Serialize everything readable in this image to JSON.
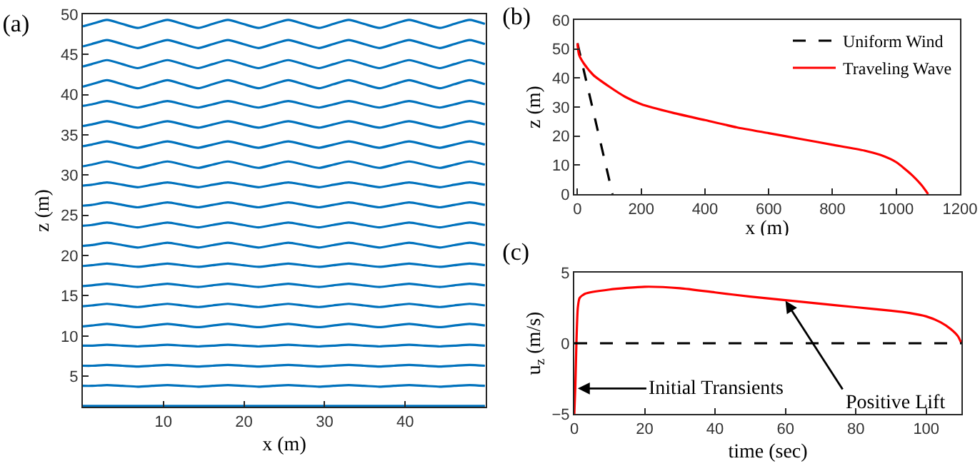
{
  "chart_data": [
    {
      "type": "line",
      "title": "(a)",
      "xlabel": "x (m)",
      "ylabel": "z (m)",
      "xlim": [
        0,
        50
      ],
      "ylim": [
        1.2,
        50
      ],
      "xticks": [
        10,
        20,
        30,
        40
      ],
      "yticks": [
        5,
        10,
        15,
        20,
        25,
        30,
        35,
        40,
        45,
        50
      ],
      "grid": false,
      "legend": false,
      "x": [
        0,
        1.1,
        3,
        4.9,
        6.8,
        8.6,
        10.5,
        12.4,
        14.3,
        16.1,
        18,
        19.9,
        21.8,
        23.6,
        25.5,
        27.4,
        29.3,
        31.1,
        33,
        34.9,
        36.8,
        38.6,
        40.5,
        42.4,
        44.3,
        46.1,
        48,
        49.9
      ],
      "series": [
        {
          "color": "#0072bd",
          "values": [
            1.3,
            1.3,
            1.3,
            1.3,
            1.3,
            1.3,
            1.3,
            1.3,
            1.3,
            1.3,
            1.3,
            1.3,
            1.3,
            1.3,
            1.3,
            1.3,
            1.3,
            1.3,
            1.3,
            1.3,
            1.3,
            1.3,
            1.3,
            1.3,
            1.3,
            1.3,
            1.3,
            1.3
          ]
        },
        {
          "color": "#0072bd",
          "values": [
            3.8,
            3.8,
            3.9,
            3.8,
            3.7,
            3.8,
            3.9,
            3.8,
            3.7,
            3.8,
            3.9,
            3.8,
            3.7,
            3.8,
            3.9,
            3.8,
            3.7,
            3.8,
            3.9,
            3.8,
            3.7,
            3.8,
            3.9,
            3.8,
            3.7,
            3.8,
            3.9,
            3.8
          ]
        },
        {
          "color": "#0072bd",
          "values": [
            6.3,
            6.3,
            6.4,
            6.3,
            6.2,
            6.3,
            6.4,
            6.3,
            6.2,
            6.3,
            6.4,
            6.3,
            6.2,
            6.3,
            6.4,
            6.3,
            6.2,
            6.3,
            6.4,
            6.3,
            6.2,
            6.3,
            6.4,
            6.3,
            6.2,
            6.3,
            6.4,
            6.3
          ]
        },
        {
          "color": "#0072bd",
          "values": [
            8.8,
            8.8,
            8.9,
            8.8,
            8.7,
            8.8,
            8.9,
            8.8,
            8.7,
            8.8,
            8.9,
            8.8,
            8.7,
            8.8,
            8.9,
            8.8,
            8.7,
            8.8,
            8.9,
            8.8,
            8.7,
            8.8,
            8.9,
            8.8,
            8.7,
            8.8,
            8.9,
            8.8
          ]
        },
        {
          "color": "#0072bd",
          "values": [
            11.2,
            11.3,
            11.5,
            11.3,
            11.1,
            11.3,
            11.5,
            11.3,
            11.1,
            11.3,
            11.5,
            11.3,
            11.1,
            11.3,
            11.5,
            11.3,
            11.1,
            11.3,
            11.5,
            11.3,
            11.1,
            11.3,
            11.5,
            11.3,
            11.1,
            11.3,
            11.5,
            11.3
          ]
        },
        {
          "color": "#0072bd",
          "values": [
            13.7,
            13.8,
            14.0,
            13.8,
            13.6,
            13.8,
            14.0,
            13.8,
            13.6,
            13.8,
            14.0,
            13.8,
            13.6,
            13.8,
            14.0,
            13.8,
            13.6,
            13.8,
            14.0,
            13.8,
            13.6,
            13.8,
            14.0,
            13.8,
            13.6,
            13.8,
            14.0,
            13.8
          ]
        },
        {
          "color": "#0072bd",
          "values": [
            16.2,
            16.3,
            16.5,
            16.3,
            16.1,
            16.3,
            16.5,
            16.3,
            16.1,
            16.3,
            16.5,
            16.3,
            16.1,
            16.3,
            16.5,
            16.3,
            16.1,
            16.3,
            16.5,
            16.3,
            16.1,
            16.3,
            16.5,
            16.3,
            16.1,
            16.3,
            16.5,
            16.3
          ]
        },
        {
          "color": "#0072bd",
          "values": [
            18.7,
            18.8,
            19.0,
            18.8,
            18.6,
            18.8,
            19.0,
            18.8,
            18.6,
            18.8,
            19.0,
            18.8,
            18.6,
            18.8,
            19.0,
            18.8,
            18.6,
            18.8,
            19.0,
            18.8,
            18.6,
            18.8,
            19.0,
            18.8,
            18.6,
            18.8,
            19.0,
            18.8
          ]
        },
        {
          "color": "#0072bd",
          "values": [
            21.2,
            21.3,
            21.6,
            21.3,
            21.0,
            21.3,
            21.6,
            21.3,
            21.0,
            21.3,
            21.6,
            21.3,
            21.0,
            21.3,
            21.6,
            21.3,
            21.0,
            21.3,
            21.6,
            21.3,
            21.0,
            21.3,
            21.6,
            21.3,
            21.0,
            21.3,
            21.6,
            21.3
          ]
        },
        {
          "color": "#0072bd",
          "values": [
            23.7,
            23.8,
            24.1,
            23.8,
            23.5,
            23.8,
            24.1,
            23.8,
            23.5,
            23.8,
            24.1,
            23.8,
            23.5,
            23.8,
            24.1,
            23.8,
            23.5,
            23.8,
            24.1,
            23.8,
            23.5,
            23.8,
            24.1,
            23.8,
            23.5,
            23.8,
            24.1,
            23.8
          ]
        },
        {
          "color": "#0072bd",
          "values": [
            26.2,
            26.3,
            26.6,
            26.3,
            26.0,
            26.3,
            26.6,
            26.3,
            26.0,
            26.3,
            26.6,
            26.3,
            26.0,
            26.3,
            26.6,
            26.3,
            26.0,
            26.3,
            26.6,
            26.3,
            26.0,
            26.3,
            26.6,
            26.3,
            26.0,
            26.3,
            26.6,
            26.3
          ]
        },
        {
          "color": "#0072bd",
          "values": [
            28.7,
            28.8,
            29.1,
            28.8,
            28.5,
            28.8,
            29.1,
            28.8,
            28.5,
            28.8,
            29.1,
            28.8,
            28.5,
            28.8,
            29.1,
            28.8,
            28.5,
            28.8,
            29.1,
            28.8,
            28.5,
            28.8,
            29.1,
            28.8,
            28.5,
            28.8,
            29.1,
            28.8
          ]
        },
        {
          "color": "#0072bd",
          "values": [
            31.1,
            31.3,
            31.7,
            31.3,
            30.9,
            31.3,
            31.7,
            31.3,
            30.9,
            31.3,
            31.7,
            31.3,
            30.9,
            31.3,
            31.7,
            31.3,
            30.9,
            31.3,
            31.7,
            31.3,
            30.9,
            31.3,
            31.7,
            31.3,
            30.9,
            31.3,
            31.7,
            31.3
          ]
        },
        {
          "color": "#0072bd",
          "values": [
            33.6,
            33.8,
            34.2,
            33.8,
            33.4,
            33.8,
            34.2,
            33.8,
            33.4,
            33.8,
            34.2,
            33.8,
            33.4,
            33.8,
            34.2,
            33.8,
            33.4,
            33.8,
            34.2,
            33.8,
            33.4,
            33.8,
            34.2,
            33.8,
            33.4,
            33.8,
            34.2,
            33.8
          ]
        },
        {
          "color": "#0072bd",
          "values": [
            36.1,
            36.3,
            36.7,
            36.3,
            35.9,
            36.3,
            36.7,
            36.3,
            35.9,
            36.3,
            36.7,
            36.3,
            35.9,
            36.3,
            36.7,
            36.3,
            35.9,
            36.3,
            36.7,
            36.3,
            35.9,
            36.3,
            36.7,
            36.3,
            35.9,
            36.3,
            36.7,
            36.3
          ]
        },
        {
          "color": "#0072bd",
          "values": [
            38.6,
            38.8,
            39.2,
            38.8,
            38.4,
            38.8,
            39.2,
            38.8,
            38.4,
            38.8,
            39.2,
            38.8,
            38.4,
            38.8,
            39.2,
            38.8,
            38.4,
            38.8,
            39.2,
            38.8,
            38.4,
            38.8,
            39.2,
            38.8,
            38.4,
            38.8,
            39.2,
            38.8
          ]
        },
        {
          "color": "#0072bd",
          "values": [
            41.0,
            41.3,
            41.8,
            41.3,
            40.8,
            41.3,
            41.8,
            41.3,
            40.8,
            41.3,
            41.8,
            41.3,
            40.8,
            41.3,
            41.8,
            41.3,
            40.8,
            41.3,
            41.8,
            41.3,
            40.8,
            41.3,
            41.8,
            41.3,
            40.8,
            41.3,
            41.8,
            41.3
          ]
        },
        {
          "color": "#0072bd",
          "values": [
            43.5,
            43.8,
            44.3,
            43.8,
            43.3,
            43.8,
            44.3,
            43.8,
            43.3,
            43.8,
            44.3,
            43.8,
            43.3,
            43.8,
            44.3,
            43.8,
            43.3,
            43.8,
            44.3,
            43.8,
            43.3,
            43.8,
            44.3,
            43.8,
            43.3,
            43.8,
            44.3,
            43.8
          ]
        },
        {
          "color": "#0072bd",
          "values": [
            46.0,
            46.3,
            46.8,
            46.3,
            45.8,
            46.3,
            46.8,
            46.3,
            45.8,
            46.3,
            46.8,
            46.3,
            45.8,
            46.3,
            46.8,
            46.3,
            45.8,
            46.3,
            46.8,
            46.3,
            45.8,
            46.3,
            46.8,
            46.3,
            45.8,
            46.3,
            46.8,
            46.3
          ]
        },
        {
          "color": "#0072bd",
          "values": [
            48.5,
            48.8,
            49.3,
            48.8,
            48.3,
            48.8,
            49.3,
            48.8,
            48.3,
            48.8,
            49.3,
            48.8,
            48.3,
            48.8,
            49.3,
            48.8,
            48.3,
            48.8,
            49.3,
            48.8,
            48.3,
            48.8,
            49.3,
            48.8,
            48.3,
            48.8,
            49.3,
            48.8
          ]
        }
      ]
    },
    {
      "type": "line",
      "title": "(b)",
      "xlabel": "x (m)",
      "ylabel": "z (m)",
      "xlim": [
        -10,
        1200
      ],
      "ylim": [
        0,
        60
      ],
      "xticks": [
        0,
        200,
        400,
        600,
        800,
        1000,
        1200
      ],
      "yticks": [
        0,
        10,
        20,
        30,
        40,
        50,
        60
      ],
      "grid": false,
      "legend": "top right",
      "series": [
        {
          "name": "Uniform Wind",
          "color": "#000000",
          "line_style": "dashed",
          "x": [
            0,
            110
          ],
          "values": [
            52,
            0
          ]
        },
        {
          "name": "Traveling Wave",
          "color": "#ff0000",
          "line_style": "solid",
          "x": [
            0,
            5,
            20,
            50,
            100,
            150,
            200,
            300,
            400,
            500,
            600,
            700,
            800,
            900,
            950,
            1000,
            1050,
            1080,
            1100
          ],
          "values": [
            52,
            48,
            45,
            41,
            37,
            33.5,
            31,
            28,
            25.5,
            23,
            21,
            19,
            17,
            15,
            13.5,
            11,
            6.5,
            3,
            0
          ]
        }
      ]
    },
    {
      "type": "line",
      "title": "(c)",
      "xlabel": "time (sec)",
      "ylabel": "u$_{z}$ (m/s)",
      "xlim": [
        0,
        110
      ],
      "ylim": [
        -5,
        5
      ],
      "xticks": [
        0,
        20,
        40,
        60,
        80,
        100
      ],
      "yticks": [
        -5,
        0,
        5
      ],
      "grid": false,
      "legend": false,
      "ref_lines": [
        {
          "axis": "y",
          "value": 0,
          "color": "#000000",
          "line_style": "dashed"
        }
      ],
      "annotations": [
        {
          "text": "Initial Transients",
          "x": 1,
          "y": -3.2
        },
        {
          "text": "Positive Lift",
          "x": 60,
          "y": 3
        }
      ],
      "series": [
        {
          "color": "#ff0000",
          "x": [
            0,
            0.3,
            0.6,
            1,
            1.5,
            3,
            10,
            20,
            30,
            40,
            50,
            60,
            70,
            80,
            90,
            95,
            100,
            104,
            107,
            109,
            110
          ],
          "values": [
            -5,
            -3,
            0,
            2.5,
            3.2,
            3.5,
            3.8,
            4,
            3.9,
            3.6,
            3.3,
            3.05,
            2.8,
            2.55,
            2.3,
            2.15,
            1.9,
            1.5,
            1,
            0.5,
            0
          ]
        }
      ]
    }
  ]
}
